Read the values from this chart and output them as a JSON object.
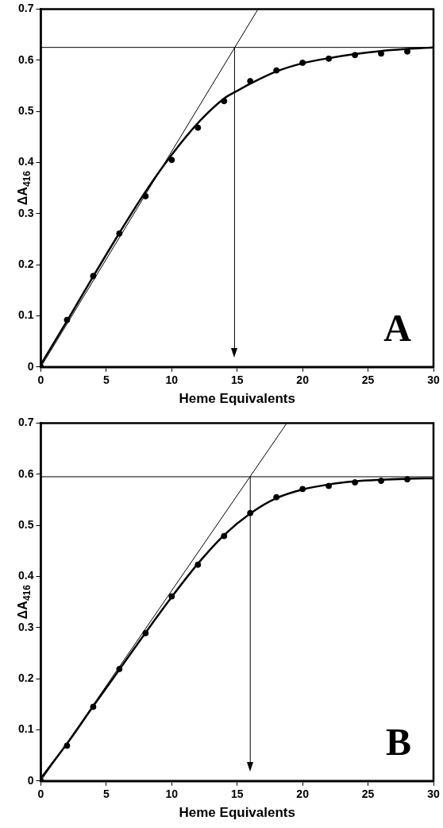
{
  "chart_data": [
    {
      "type": "scatter",
      "xlabel": "Heme Equivalents",
      "ylabel": "ΔA$_{416}$",
      "annotations": [
        "A"
      ],
      "xlim": [
        0,
        30
      ],
      "xticks": [
        0,
        5,
        10,
        15,
        20,
        25,
        30
      ],
      "ylim": [
        0,
        0.7
      ],
      "yticks": [
        0,
        0.1,
        0.2,
        0.3,
        0.4,
        0.5,
        0.6,
        0.7
      ],
      "grid": false,
      "legend": false,
      "ref_lines": [
        {
          "axis": "y",
          "value": 0.625,
          "color": "#000000"
        },
        {
          "axis": "x",
          "value": 14.8,
          "color": "#000000"
        }
      ],
      "series": [
        {
          "type": "line",
          "color": "#000000",
          "marker": "none",
          "x": [
            0,
            16.6
          ],
          "values": [
            0,
            0.7
          ]
        },
        {
          "type": "line",
          "color": "#000000",
          "marker": "none",
          "x": [
            0,
            2,
            4,
            6,
            8,
            10,
            12,
            14,
            15,
            16,
            18,
            20,
            22,
            24,
            26,
            28,
            30
          ],
          "values": [
            0.005,
            0.09,
            0.177,
            0.262,
            0.343,
            0.415,
            0.477,
            0.525,
            0.54,
            0.554,
            0.578,
            0.594,
            0.604,
            0.612,
            0.618,
            0.622,
            0.625
          ]
        },
        {
          "type": "scatter",
          "color": "#000000",
          "marker": "circle",
          "x": [
            0,
            2,
            4,
            6,
            8,
            10,
            12,
            14,
            16,
            18,
            20,
            22,
            24,
            26,
            28
          ],
          "values": [
            0,
            0.092,
            0.178,
            0.261,
            0.334,
            0.405,
            0.468,
            0.52,
            0.559,
            0.58,
            0.595,
            0.603,
            0.61,
            0.613,
            0.617
          ]
        }
      ]
    },
    {
      "type": "scatter",
      "xlabel": "Heme Equivalents",
      "ylabel": "ΔA$_{416}$",
      "annotations": [
        "B"
      ],
      "xlim": [
        0,
        30
      ],
      "xticks": [
        0,
        5,
        10,
        15,
        20,
        25,
        30
      ],
      "ylim": [
        0,
        0.7
      ],
      "yticks": [
        0,
        0.1,
        0.2,
        0.3,
        0.4,
        0.5,
        0.6,
        0.7
      ],
      "grid": false,
      "legend": false,
      "ref_lines": [
        {
          "axis": "y",
          "value": 0.595,
          "color": "#000000"
        },
        {
          "axis": "x",
          "value": 16,
          "color": "#000000"
        }
      ],
      "series": [
        {
          "type": "line",
          "color": "#000000",
          "marker": "none",
          "x": [
            0,
            18.8
          ],
          "values": [
            0,
            0.7
          ]
        },
        {
          "type": "line",
          "color": "#000000",
          "marker": "none",
          "x": [
            0,
            2,
            4,
            6,
            8,
            10,
            12,
            14,
            16,
            18,
            20,
            22,
            24,
            26,
            28,
            30
          ],
          "values": [
            0.005,
            0.073,
            0.146,
            0.218,
            0.29,
            0.36,
            0.425,
            0.481,
            0.523,
            0.553,
            0.57,
            0.58,
            0.586,
            0.589,
            0.591,
            0.592
          ]
        },
        {
          "type": "scatter",
          "color": "#000000",
          "marker": "circle",
          "x": [
            0,
            2,
            4,
            6,
            8,
            10,
            12,
            14,
            16,
            18,
            20,
            22,
            24,
            26,
            28
          ],
          "values": [
            0,
            0.069,
            0.145,
            0.219,
            0.289,
            0.361,
            0.423,
            0.479,
            0.524,
            0.555,
            0.571,
            0.577,
            0.584,
            0.587,
            0.59
          ]
        }
      ]
    }
  ]
}
